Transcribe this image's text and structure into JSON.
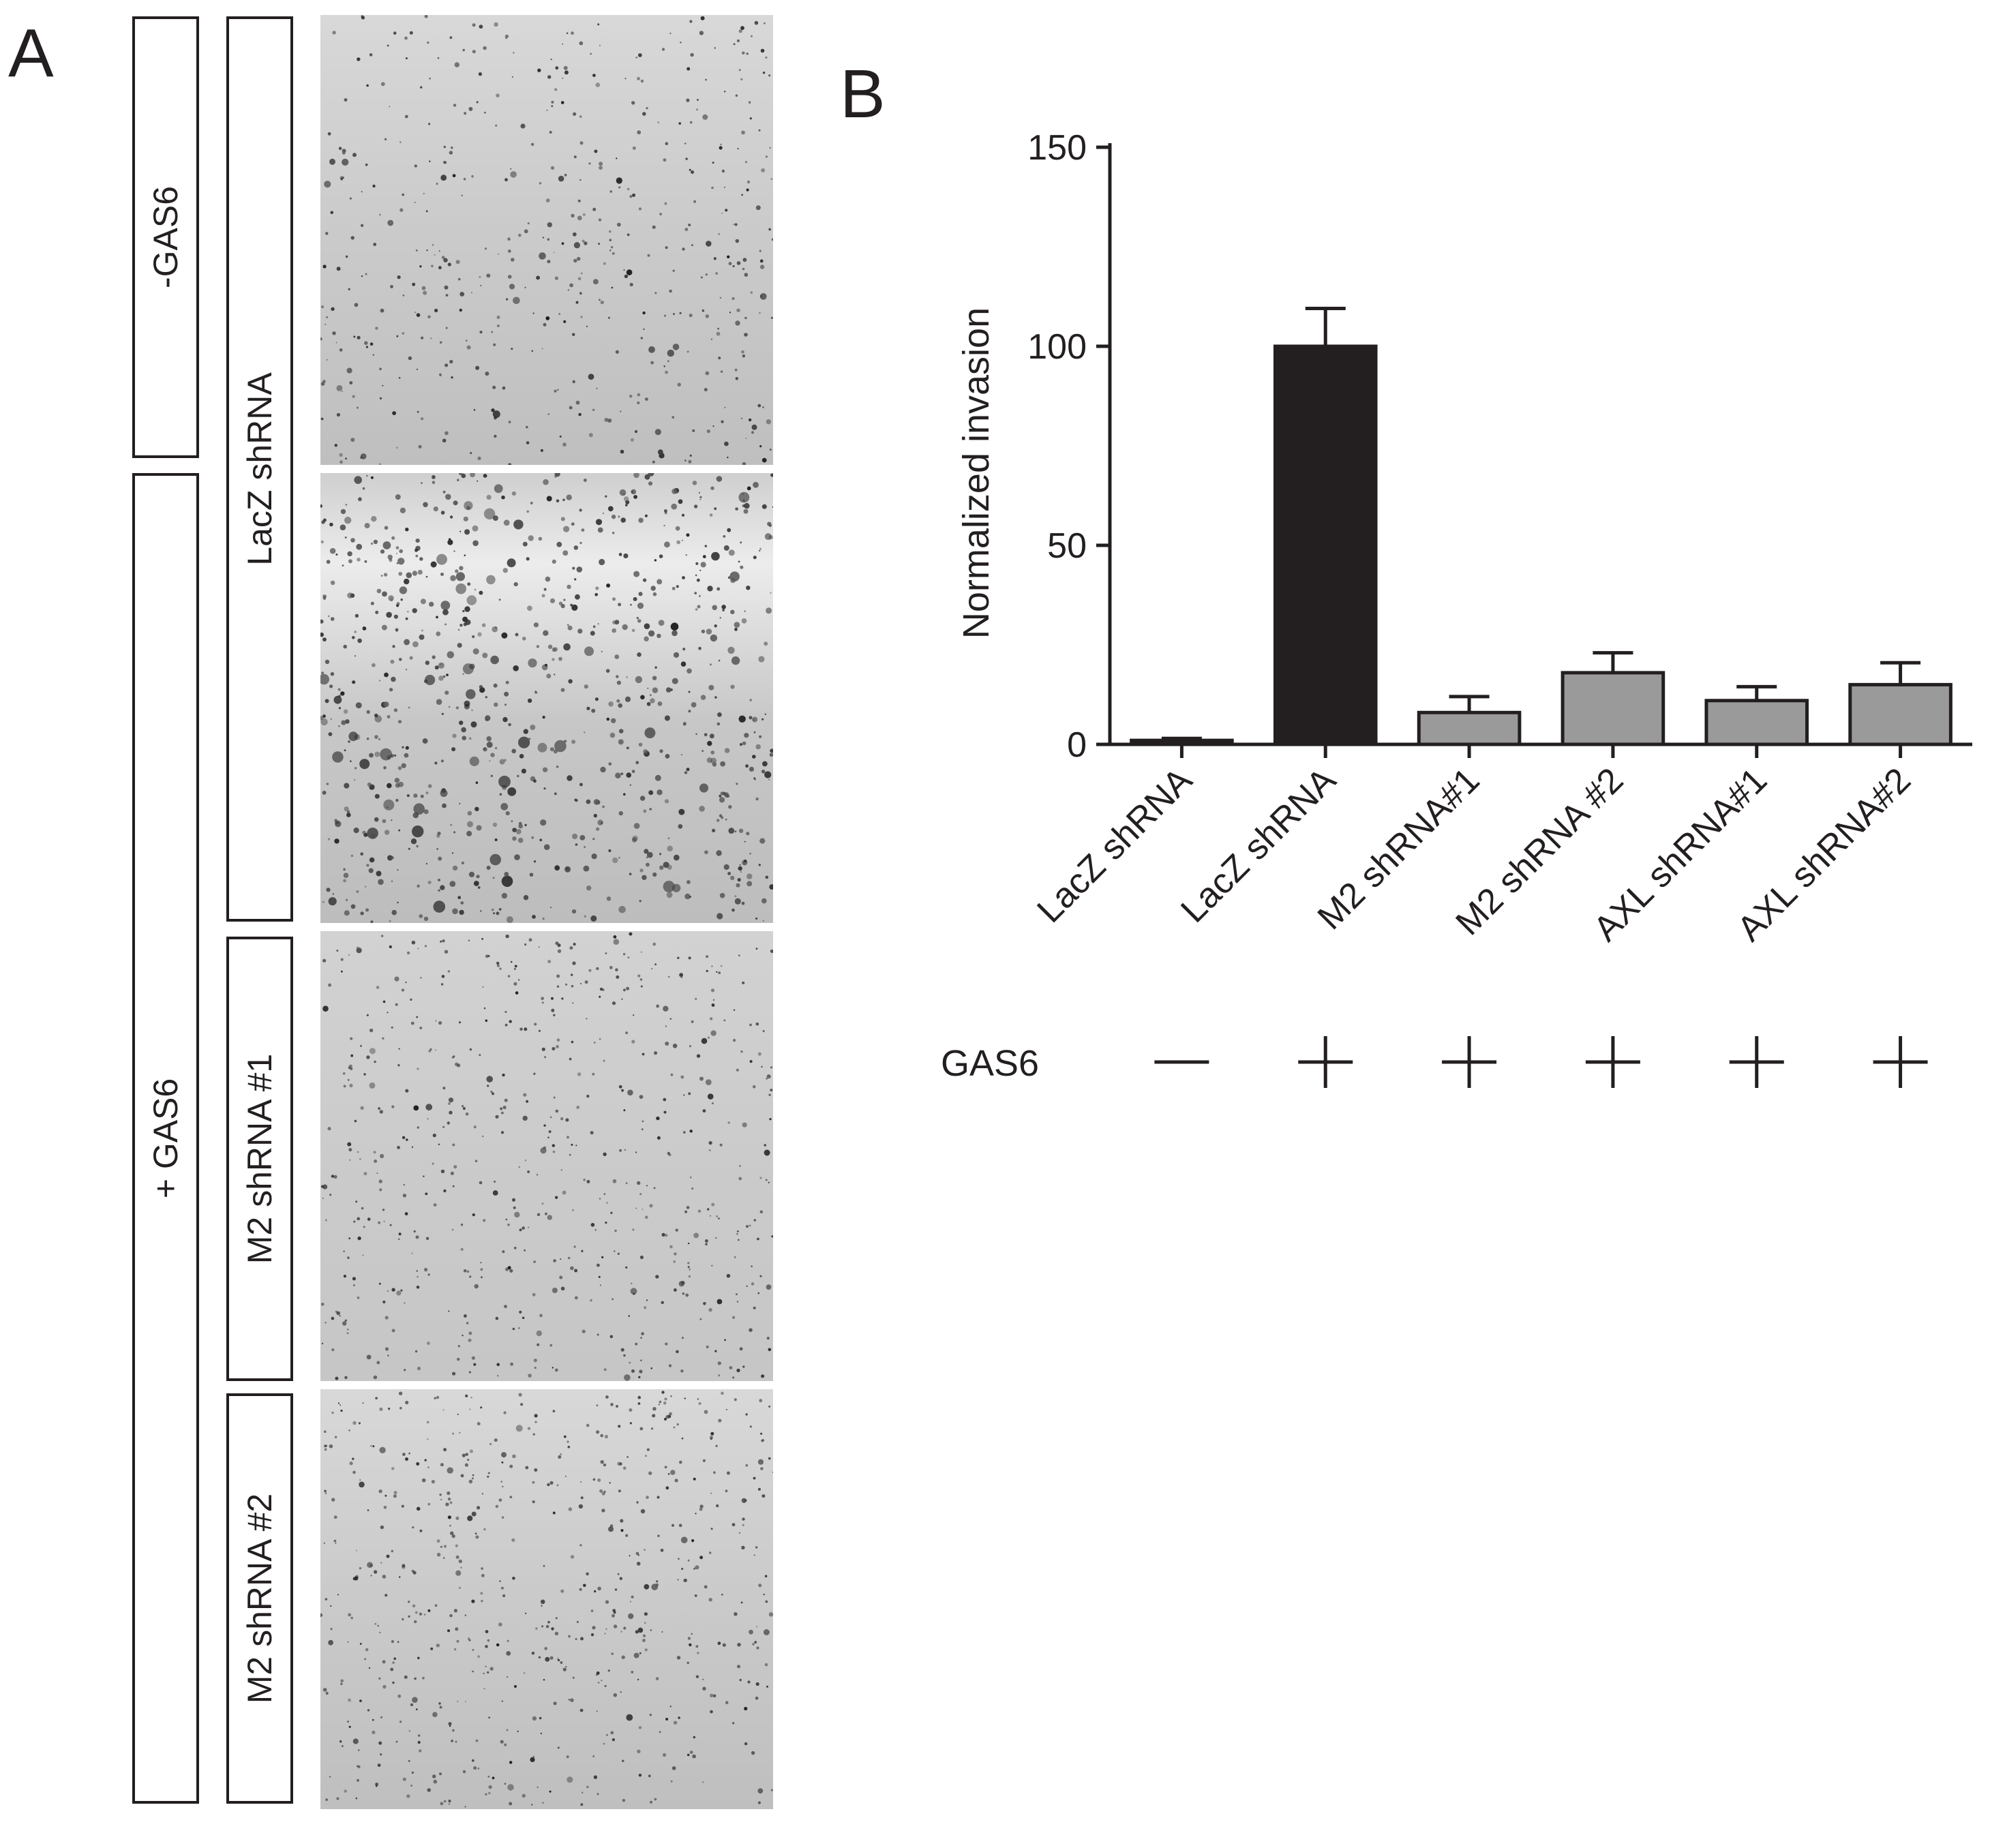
{
  "panel_a": {
    "letter": "A",
    "treatment_labels": [
      "-GAS6",
      "+ GAS6"
    ],
    "condition_labels": [
      "LacZ shRNA",
      "M2 shRNA #1",
      "M2 shRNA #2"
    ]
  },
  "panel_b": {
    "letter": "B",
    "gas6_row": {
      "label": "GAS6",
      "signs": [
        "−",
        "+",
        "+",
        "+",
        "+",
        "+"
      ]
    }
  },
  "chart_data": {
    "type": "bar",
    "title": "",
    "xlabel": "",
    "ylabel": "Normalized invasion",
    "ylim": [
      0,
      150
    ],
    "yticks": [
      0,
      50,
      100,
      150
    ],
    "categories": [
      "LacZ shRNA",
      "LacZ shRNA",
      "M2 shRNA#1",
      "M2 shRNA #2",
      "AXL shRNA#1",
      "AXL shRNA#2"
    ],
    "values": [
      1,
      100,
      8,
      18,
      11,
      15
    ],
    "errors": [
      0.5,
      9.5,
      4,
      5,
      3.5,
      5.5
    ],
    "bar_colors": [
      "#231f20",
      "#231f20",
      "#9b9a9a",
      "#9b9a9a",
      "#9b9a9a",
      "#9b9a9a"
    ],
    "grid": false,
    "legend": "none"
  }
}
